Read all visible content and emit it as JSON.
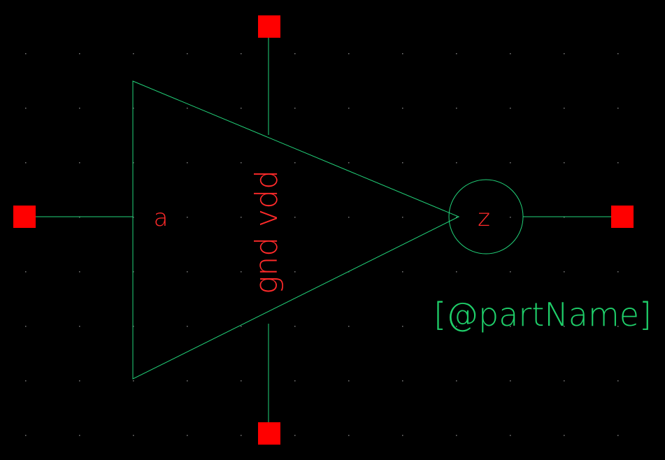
{
  "symbol": {
    "type": "inverter",
    "pins": {
      "input": "a",
      "output": "z",
      "power": "vdd",
      "ground": "gnd"
    },
    "power_label": "gnd vdd",
    "instance_label": "[@partName]"
  },
  "colors": {
    "background": "#000000",
    "body": "#22d37a",
    "pin_marker": "#ff0000",
    "pin_text": "#ff2a2a",
    "instance_text": "#1fcf6a",
    "grid_dot": "#7a7a7a"
  }
}
